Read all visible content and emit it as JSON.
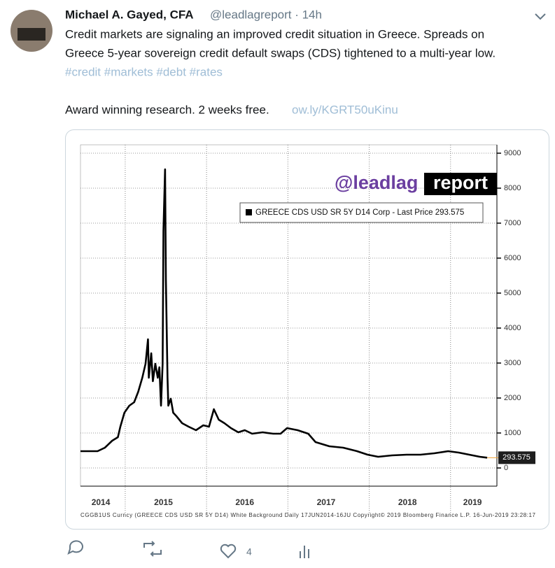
{
  "tweet": {
    "author": "Michael A. Gayed, CFA",
    "handle_time": "@leadlagreport · 14h",
    "text_lines": [
      "Credit markets are signaling an improved credit situation in Greece. Spreads on",
      "Greece 5-year sovereign credit default swaps (CDS) tightened to a multi-year low."
    ],
    "hashtags": "#credit #markets #debt #rates",
    "promo": "Award winning research. 2 weeks free.",
    "link": "ow.ly/KGRT50uKinu",
    "likes": "4"
  },
  "chart_data": {
    "type": "line",
    "watermark": "@leadlag",
    "watermark_box": "report",
    "x": [
      2014.45,
      2014.66,
      2014.75,
      2014.84,
      2014.91,
      2014.94,
      2014.99,
      2015.05,
      2015.11,
      2015.16,
      2015.21,
      2015.25,
      2015.28,
      2015.29,
      2015.32,
      2015.34,
      2015.37,
      2015.4,
      2015.42,
      2015.44,
      2015.46,
      2015.47,
      2015.49,
      2015.5,
      2015.52,
      2015.53,
      2015.56,
      2015.59,
      2015.63,
      2015.7,
      2015.78,
      2015.87,
      2015.96,
      2016.03,
      2016.09,
      2016.15,
      2016.22,
      2016.3,
      2016.39,
      2016.47,
      2016.56,
      2016.69,
      2016.82,
      2016.91,
      2016.99,
      2017.12,
      2017.25,
      2017.34,
      2017.51,
      2017.68,
      2017.85,
      2017.98,
      2018.11,
      2018.28,
      2018.46,
      2018.63,
      2018.8,
      2018.97,
      2019.1,
      2019.23,
      2019.36,
      2019.45
    ],
    "series": [
      {
        "name": "GREECE CDS USD SR 5Y D14 Corp - Last Price 293.575",
        "color": "#000000",
        "values": [
          480,
          480,
          580,
          780,
          880,
          1180,
          1580,
          1780,
          1880,
          2180,
          2580,
          2980,
          3680,
          2580,
          3280,
          2480,
          2980,
          2580,
          2880,
          1780,
          2980,
          6780,
          8540,
          5380,
          2580,
          1780,
          1980,
          1580,
          1480,
          1280,
          1180,
          1080,
          1220,
          1180,
          1680,
          1380,
          1280,
          1140,
          1020,
          1080,
          980,
          1020,
          980,
          980,
          1140,
          1080,
          980,
          740,
          620,
          580,
          480,
          380,
          320,
          360,
          380,
          380,
          420,
          480,
          440,
          380,
          320,
          293.575
        ]
      }
    ],
    "last_price": 293.575,
    "xlim": [
      2014.45,
      2019.57
    ],
    "xticks": [
      {
        "value": 2014.7,
        "label": "2014"
      },
      {
        "value": 2015.47,
        "label": "2015"
      },
      {
        "value": 2016.47,
        "label": "2016"
      },
      {
        "value": 2017.47,
        "label": "2017"
      },
      {
        "value": 2018.47,
        "label": "2018"
      },
      {
        "value": 2019.27,
        "label": "2019"
      }
    ],
    "ylim": [
      -520,
      9240
    ],
    "yticks": [
      0,
      1000,
      2000,
      3000,
      4000,
      5000,
      6000,
      7000,
      8000,
      9000
    ],
    "grid": true,
    "footer": "CGGB1US Curncy (GREECE CDS USD SR 5Y D14) White Background  Daily 17JUN2014-16JU  Copyright© 2019 Bloomberg Finance L.P.    16-Jun-2019 23:28:17"
  }
}
